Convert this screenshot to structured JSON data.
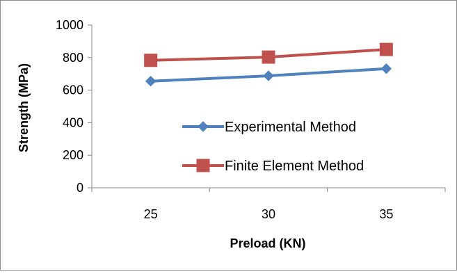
{
  "chart_data": {
    "type": "line",
    "title": "",
    "xlabel": "Preload (KN)",
    "ylabel": "Strength (MPa)",
    "categories": [
      "25",
      "30",
      "35"
    ],
    "ylim": [
      0,
      1000
    ],
    "yticks": [
      "0",
      "200",
      "400",
      "600",
      "800",
      "1000"
    ],
    "grid": false,
    "legend_position": "right-middle",
    "series": [
      {
        "name": "Experimental Method",
        "values": [
          655,
          688,
          732
        ],
        "color": "#4f81bd",
        "marker": "diamond"
      },
      {
        "name": "Finite Element Method",
        "values": [
          783,
          803,
          850
        ],
        "color": "#c0504d",
        "marker": "square"
      }
    ]
  }
}
